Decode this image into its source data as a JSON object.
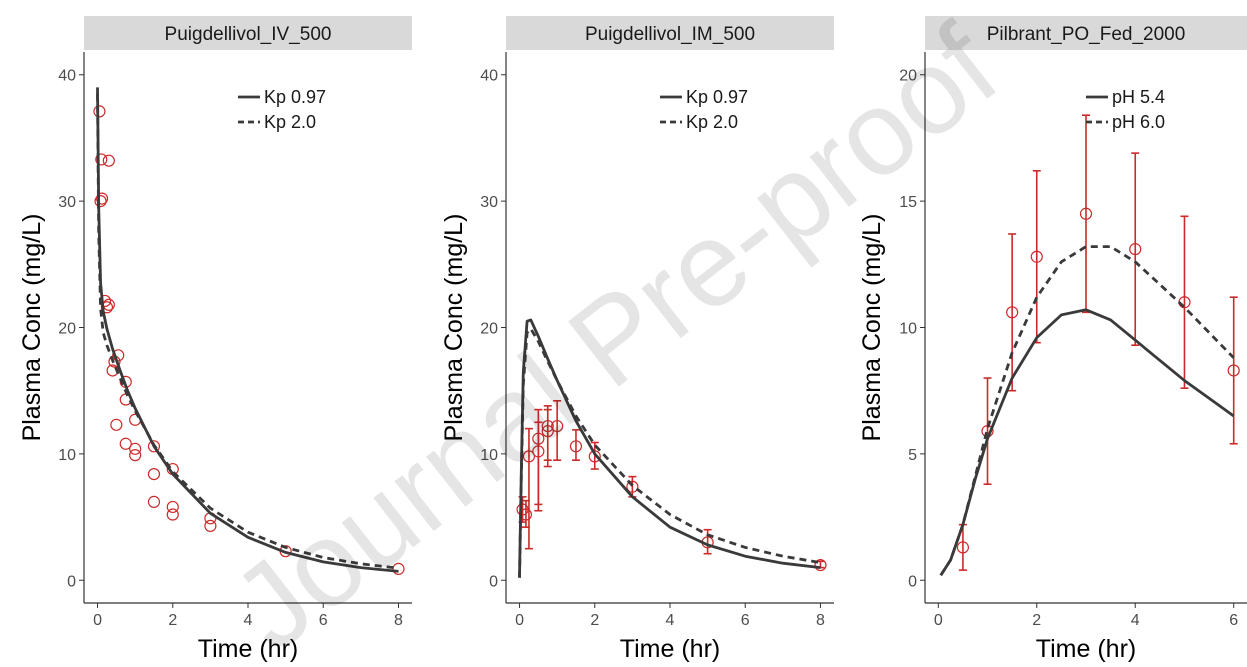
{
  "watermark": "Journal Pre-proof",
  "colors": {
    "model_line": "#3a3a3a",
    "observed": "#cc2a2a",
    "strip": "#d9d9d9"
  },
  "chart_data": [
    {
      "type": "line",
      "title": "Puigdellivol_IV_500",
      "xlabel": "Time (hr)",
      "ylabel": "Plasma Conc (mg/L)",
      "xlim": [
        0,
        8
      ],
      "ylim": [
        0,
        40
      ],
      "xticks": [
        0,
        2,
        4,
        6,
        8
      ],
      "yticks": [
        0,
        10,
        20,
        30,
        40
      ],
      "legend": "top-right",
      "series": [
        {
          "name": "Kp 0.97",
          "style": "solid",
          "x": [
            0,
            0.03,
            0.08,
            0.15,
            0.25,
            0.4,
            0.6,
            0.8,
            1.0,
            1.5,
            2.0,
            3.0,
            4.0,
            5.0,
            6.0,
            7.0,
            8.0
          ],
          "y": [
            39.0,
            29.5,
            23.5,
            21.3,
            19.9,
            18.3,
            16.6,
            15.0,
            13.6,
            10.6,
            8.4,
            5.3,
            3.4,
            2.2,
            1.45,
            1.0,
            0.7
          ]
        },
        {
          "name": "Kp 2.0",
          "style": "dashed",
          "x": [
            0,
            0.03,
            0.08,
            0.15,
            0.25,
            0.4,
            0.6,
            0.8,
            1.0,
            1.5,
            2.0,
            3.0,
            4.0,
            5.0,
            6.0,
            7.0,
            8.0
          ],
          "y": [
            38.5,
            27.5,
            21.5,
            19.6,
            18.6,
            17.4,
            16.0,
            14.6,
            13.4,
            10.7,
            8.6,
            5.7,
            3.8,
            2.6,
            1.8,
            1.3,
            0.95
          ]
        }
      ],
      "observed": [
        {
          "x": 0.05,
          "y": 37.1
        },
        {
          "x": 0.1,
          "y": 33.3
        },
        {
          "x": 0.08,
          "y": 30.0
        },
        {
          "x": 0.12,
          "y": 30.2
        },
        {
          "x": 0.3,
          "y": 33.2
        },
        {
          "x": 0.2,
          "y": 22.1
        },
        {
          "x": 0.25,
          "y": 21.6
        },
        {
          "x": 0.3,
          "y": 21.8
        },
        {
          "x": 0.45,
          "y": 17.3
        },
        {
          "x": 0.55,
          "y": 17.8
        },
        {
          "x": 0.4,
          "y": 16.6
        },
        {
          "x": 0.75,
          "y": 15.7
        },
        {
          "x": 0.75,
          "y": 14.3
        },
        {
          "x": 1.0,
          "y": 12.7
        },
        {
          "x": 0.5,
          "y": 12.3
        },
        {
          "x": 0.75,
          "y": 10.8
        },
        {
          "x": 1.0,
          "y": 10.4
        },
        {
          "x": 1.0,
          "y": 9.9
        },
        {
          "x": 1.5,
          "y": 10.6
        },
        {
          "x": 1.5,
          "y": 8.4
        },
        {
          "x": 1.5,
          "y": 6.2
        },
        {
          "x": 2.0,
          "y": 8.8
        },
        {
          "x": 2.0,
          "y": 5.8
        },
        {
          "x": 2.0,
          "y": 5.2
        },
        {
          "x": 3.0,
          "y": 4.9
        },
        {
          "x": 3.0,
          "y": 4.3
        },
        {
          "x": 5.0,
          "y": 2.3
        },
        {
          "x": 8.0,
          "y": 0.9
        }
      ]
    },
    {
      "type": "line",
      "title": "Puigdellivol_IM_500",
      "xlabel": "Time (hr)",
      "ylabel": "Plasma Conc (mg/L)",
      "xlim": [
        0,
        8
      ],
      "ylim": [
        0,
        40
      ],
      "xticks": [
        0,
        2,
        4,
        6,
        8
      ],
      "yticks": [
        0,
        10,
        20,
        30,
        40
      ],
      "legend": "top-right",
      "series": [
        {
          "name": "Kp 0.97",
          "style": "solid",
          "x": [
            0,
            0.05,
            0.1,
            0.2,
            0.3,
            0.5,
            0.75,
            1.0,
            1.5,
            2.0,
            3.0,
            4.0,
            5.0,
            6.0,
            7.0,
            8.0
          ],
          "y": [
            0.2,
            9.0,
            16.5,
            20.5,
            20.6,
            19.3,
            17.5,
            15.8,
            12.6,
            10.0,
            6.6,
            4.2,
            2.8,
            1.9,
            1.35,
            1.0
          ]
        },
        {
          "name": "Kp 2.0",
          "style": "dashed",
          "x": [
            0,
            0.05,
            0.1,
            0.2,
            0.3,
            0.5,
            0.75,
            1.0,
            1.5,
            2.0,
            3.0,
            4.0,
            5.0,
            6.0,
            7.0,
            8.0
          ],
          "y": [
            0.2,
            8.5,
            15.5,
            19.6,
            19.9,
            18.9,
            17.3,
            15.8,
            13.0,
            10.7,
            7.5,
            5.2,
            3.6,
            2.6,
            1.9,
            1.4
          ]
        }
      ],
      "observed": [
        {
          "x": 0.08,
          "y": 5.6,
          "lo": 4.6,
          "hi": 6.6
        },
        {
          "x": 0.17,
          "y": 5.2,
          "lo": 4.2,
          "hi": 6.3
        },
        {
          "x": 0.25,
          "y": 9.8,
          "lo": 2.5,
          "hi": 12.0
        },
        {
          "x": 0.5,
          "y": 11.2,
          "lo": 6.0,
          "hi": 13.5
        },
        {
          "x": 0.5,
          "y": 10.2,
          "lo": 5.5,
          "hi": 12.5
        },
        {
          "x": 0.75,
          "y": 12.2,
          "lo": 9.5,
          "hi": 13.8
        },
        {
          "x": 0.75,
          "y": 11.8,
          "lo": 9.0,
          "hi": 13.5
        },
        {
          "x": 1.0,
          "y": 12.2,
          "lo": 9.5,
          "hi": 14.2
        },
        {
          "x": 1.5,
          "y": 10.6,
          "lo": 9.5,
          "hi": 11.9
        },
        {
          "x": 2.0,
          "y": 9.8,
          "lo": 8.8,
          "hi": 10.9
        },
        {
          "x": 3.0,
          "y": 7.4,
          "lo": 6.6,
          "hi": 8.2
        },
        {
          "x": 5.0,
          "y": 3.0,
          "lo": 2.1,
          "hi": 4.0
        },
        {
          "x": 8.0,
          "y": 1.2,
          "lo": 1.0,
          "hi": 1.5
        }
      ]
    },
    {
      "type": "line",
      "title": "Pilbrant_PO_Fed_2000",
      "xlabel": "Time (hr)",
      "ylabel": "Plasma Conc (mg/L)",
      "xlim": [
        0,
        6
      ],
      "ylim": [
        0,
        20
      ],
      "xticks": [
        0,
        2,
        4,
        6
      ],
      "yticks": [
        0,
        5,
        10,
        15,
        20
      ],
      "legend": "top-right",
      "series": [
        {
          "name": "pH 5.4",
          "style": "solid",
          "x": [
            0.05,
            0.25,
            0.5,
            0.75,
            1.0,
            1.5,
            2.0,
            2.5,
            3.0,
            3.5,
            4.0,
            4.5,
            5.0,
            5.5,
            6.0
          ],
          "y": [
            0.2,
            0.8,
            2.2,
            4.0,
            5.6,
            8.0,
            9.6,
            10.5,
            10.7,
            10.3,
            9.5,
            8.7,
            7.9,
            7.2,
            6.5
          ]
        },
        {
          "name": "pH 6.0",
          "style": "dashed",
          "x": [
            0.05,
            0.25,
            0.5,
            0.75,
            1.0,
            1.5,
            2.0,
            2.5,
            3.0,
            3.5,
            4.0,
            4.5,
            5.0,
            5.5,
            6.0
          ],
          "y": [
            0.2,
            0.8,
            2.2,
            4.1,
            6.0,
            9.0,
            11.2,
            12.6,
            13.2,
            13.2,
            12.6,
            11.7,
            10.8,
            9.8,
            8.8
          ]
        }
      ],
      "observed": [
        {
          "x": 0.5,
          "y": 1.3,
          "lo": 0.4,
          "hi": 2.2
        },
        {
          "x": 1.0,
          "y": 5.9,
          "lo": 3.8,
          "hi": 8.0
        },
        {
          "x": 1.5,
          "y": 10.6,
          "lo": 7.5,
          "hi": 13.7
        },
        {
          "x": 2.0,
          "y": 12.8,
          "lo": 9.4,
          "hi": 16.2
        },
        {
          "x": 3.0,
          "y": 14.5,
          "lo": 10.6,
          "hi": 18.4
        },
        {
          "x": 4.0,
          "y": 13.1,
          "lo": 9.3,
          "hi": 16.9
        },
        {
          "x": 5.0,
          "y": 11.0,
          "lo": 7.6,
          "hi": 14.4
        },
        {
          "x": 6.0,
          "y": 8.3,
          "lo": 5.4,
          "hi": 11.2
        }
      ]
    }
  ]
}
